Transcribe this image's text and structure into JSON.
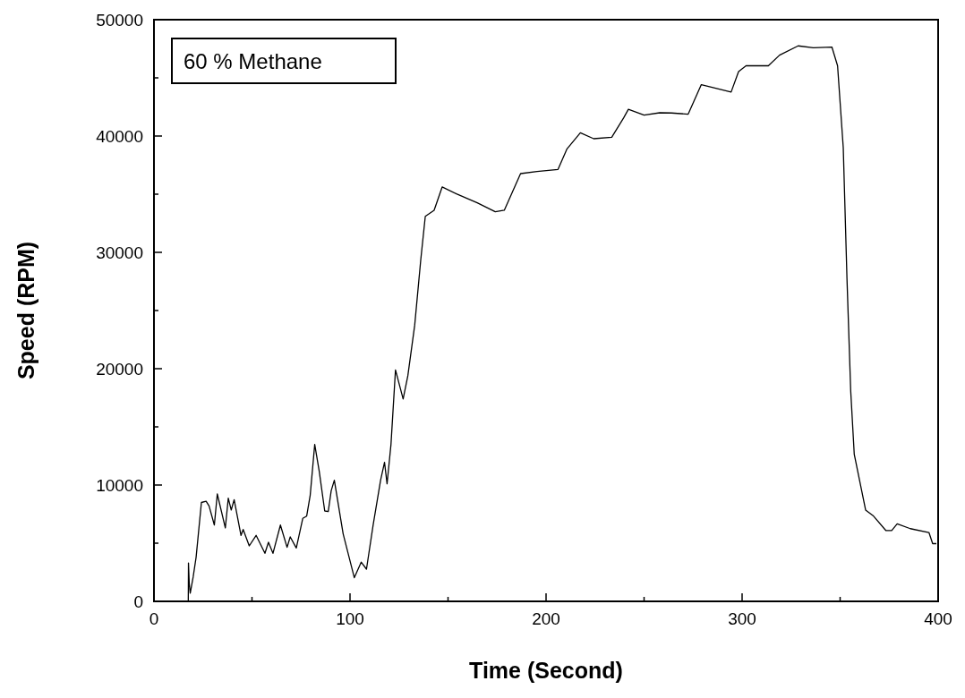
{
  "chart_data": {
    "type": "line",
    "xlabel": "Time (Second)",
    "ylabel": "Speed (RPM)",
    "annotations": [
      "60 % Methane"
    ],
    "xlim": [
      0,
      400
    ],
    "xticks": [
      0,
      100,
      200,
      300,
      400
    ],
    "ylim": [
      0,
      50000
    ],
    "yticks": [
      0,
      10000,
      20000,
      30000,
      40000,
      50000
    ],
    "grid": false,
    "series": [
      {
        "color": "#000000",
        "x": [
          17.5,
          17.6,
          18,
          18.5,
          20,
          21.5,
          24.2,
          26.6,
          28.1,
          30.8,
          32.3,
          36.4,
          37.9,
          39.4,
          40.9,
          44.4,
          45.5,
          48.6,
          52.1,
          56.6,
          58.4,
          60.7,
          64.5,
          67.9,
          69.5,
          72.6,
          75.9,
          77.9,
          79.7,
          82,
          84.3,
          87.1,
          88.9,
          90.4,
          92,
          96.5,
          102.2,
          105.7,
          108.4,
          111.8,
          115.6,
          117.6,
          118.9,
          120.9,
          123.2,
          127.1,
          129.5,
          133,
          136.1,
          138.4,
          142.9,
          147,
          154.3,
          164.9,
          174.1,
          178.7,
          187,
          195.4,
          206.1,
          210.6,
          217.5,
          224.3,
          233.5,
          239.6,
          242,
          250,
          258,
          263.9,
          272.5,
          279.2,
          294.4,
          298.2,
          302,
          313.4,
          319.1,
          328.6,
          336.3,
          345.8,
          348.7,
          351.6,
          353.5,
          355.4,
          357.2,
          363,
          366.8,
          373.4,
          376.3,
          379.1,
          385.8,
          395.3,
          397.2,
          399.1
        ],
        "values": [
          0,
          3300,
          1500,
          700,
          2100,
          3800,
          8500,
          8600,
          8200,
          6560,
          9230,
          6310,
          8870,
          7850,
          8740,
          5670,
          6180,
          4770,
          5670,
          4130,
          5080,
          4130,
          6560,
          4640,
          5540,
          4590,
          7130,
          7330,
          9130,
          13490,
          11180,
          7770,
          7720,
          9510,
          10410,
          5800,
          2030,
          3370,
          2770,
          6560,
          10410,
          11950,
          10100,
          13490,
          19900,
          17390,
          19390,
          23740,
          29380,
          33100,
          33620,
          35620,
          35030,
          34260,
          33490,
          33620,
          36770,
          36950,
          37130,
          38870,
          40280,
          39770,
          39900,
          41570,
          42300,
          41800,
          42000,
          41980,
          41880,
          44420,
          43780,
          45540,
          46040,
          46040,
          46950,
          47750,
          47590,
          47650,
          46040,
          39000,
          27720,
          18100,
          12650,
          7850,
          7370,
          6080,
          6080,
          6660,
          6250,
          5920,
          4960,
          4960
        ]
      }
    ]
  }
}
